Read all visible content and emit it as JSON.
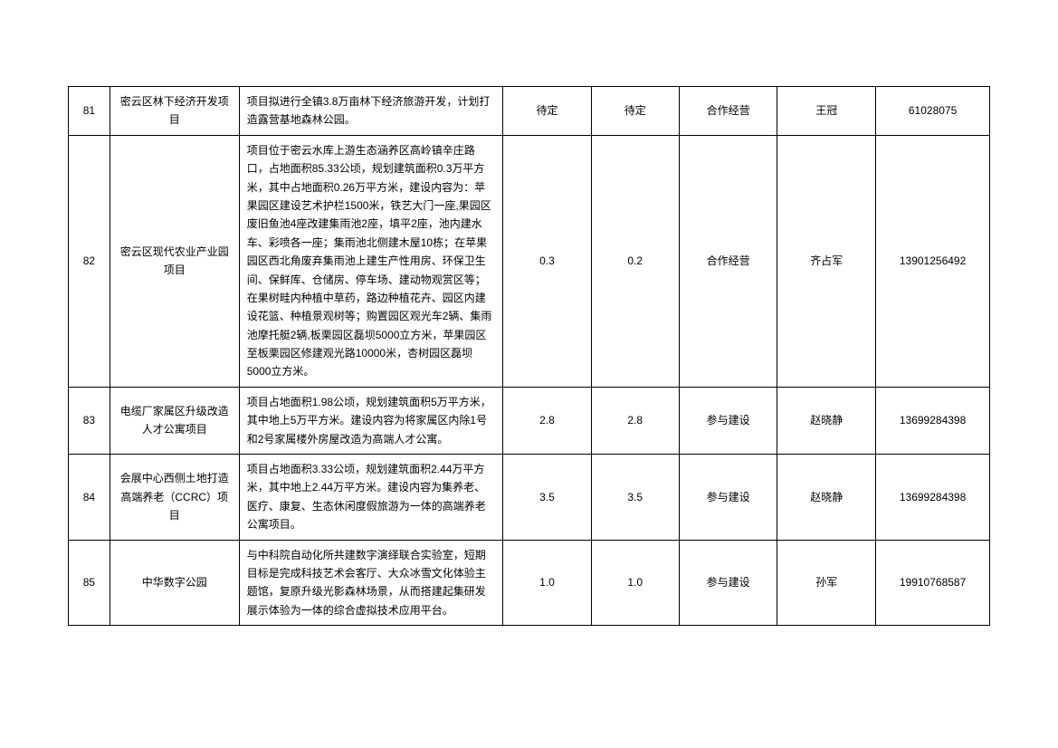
{
  "table": {
    "columns": {
      "id_width": 40,
      "name_width": 125,
      "desc_width": 255,
      "v1_width": 85,
      "v2_width": 85,
      "type_width": 95,
      "contact_width": 95,
      "phone_width": 110
    },
    "font_size": 12,
    "line_height": 1.7,
    "border_color": "#000000",
    "text_color": "#000000",
    "background_color": "#ffffff",
    "rows": [
      {
        "id": "81",
        "name": "密云区林下经济开发项目",
        "desc": "项目拟进行全镇3.8万亩林下经济旅游开发，计划打造露营基地森林公园。",
        "v1": "待定",
        "v2": "待定",
        "type": "合作经营",
        "contact": "王冠",
        "phone": "61028075"
      },
      {
        "id": "82",
        "name": "密云区现代农业产业园项目",
        "desc": "项目位于密云水库上游生态涵养区高岭镇辛庄路口，占地面积85.33公顷，规划建筑面积0.3万平方米，其中占地面积0.26万平方米，建设内容为：苹果园区建设艺术护栏1500米，铁艺大门一座,果园区废旧鱼池4座改建集雨池2座，填平2座，池内建水车、彩喷各一座；集雨池北侧建木屋10栋；在苹果园区西北角废弃集雨池上建生产性用房、环保卫生间、保鲜库、仓储房、停车场、建动物观赏区等；在果树畦内种植中草药，路边种植花卉、园区内建设花篮、种植景观树等；购置园区观光车2辆、集雨池摩托艇2辆,板栗园区磊坝5000立方米，苹果园区至板栗园区修建观光路10000米，杏树园区磊坝5000立方米。",
        "v1": "0.3",
        "v2": "0.2",
        "type": "合作经营",
        "contact": "齐占军",
        "phone": "13901256492"
      },
      {
        "id": "83",
        "name": "电缆厂家属区升级改造人才公寓项目",
        "desc": "项目占地面积1.98公顷，规划建筑面积5万平方米，其中地上5万平方米。建设内容为将家属区内除1号和2号家属楼外房屋改造为高端人才公寓。",
        "v1": "2.8",
        "v2": "2.8",
        "type": "参与建设",
        "contact": "赵晓静",
        "phone": "13699284398"
      },
      {
        "id": "84",
        "name": "会展中心西侧土地打造高端养老（CCRC）项目",
        "desc": "项目占地面积3.33公顷，规划建筑面积2.44万平方米，其中地上2.44万平方米。建设内容为集养老、医疗、康复、生态休闲度假旅游为一体的高端养老公寓项目。",
        "v1": "3.5",
        "v2": "3.5",
        "type": "参与建设",
        "contact": "赵晓静",
        "phone": "13699284398"
      },
      {
        "id": "85",
        "name": "中华数字公园",
        "desc": "与中科院自动化所共建数字演绎联合实验室，短期目标是完成科技艺术会客厅、大众冰雪文化体验主题馆，复原升级光影森林场景，从而搭建起集研发展示体验为一体的综合虚拟技术应用平台。",
        "v1": "1.0",
        "v2": "1.0",
        "type": "参与建设",
        "contact": "孙军",
        "phone": "19910768587"
      }
    ]
  }
}
